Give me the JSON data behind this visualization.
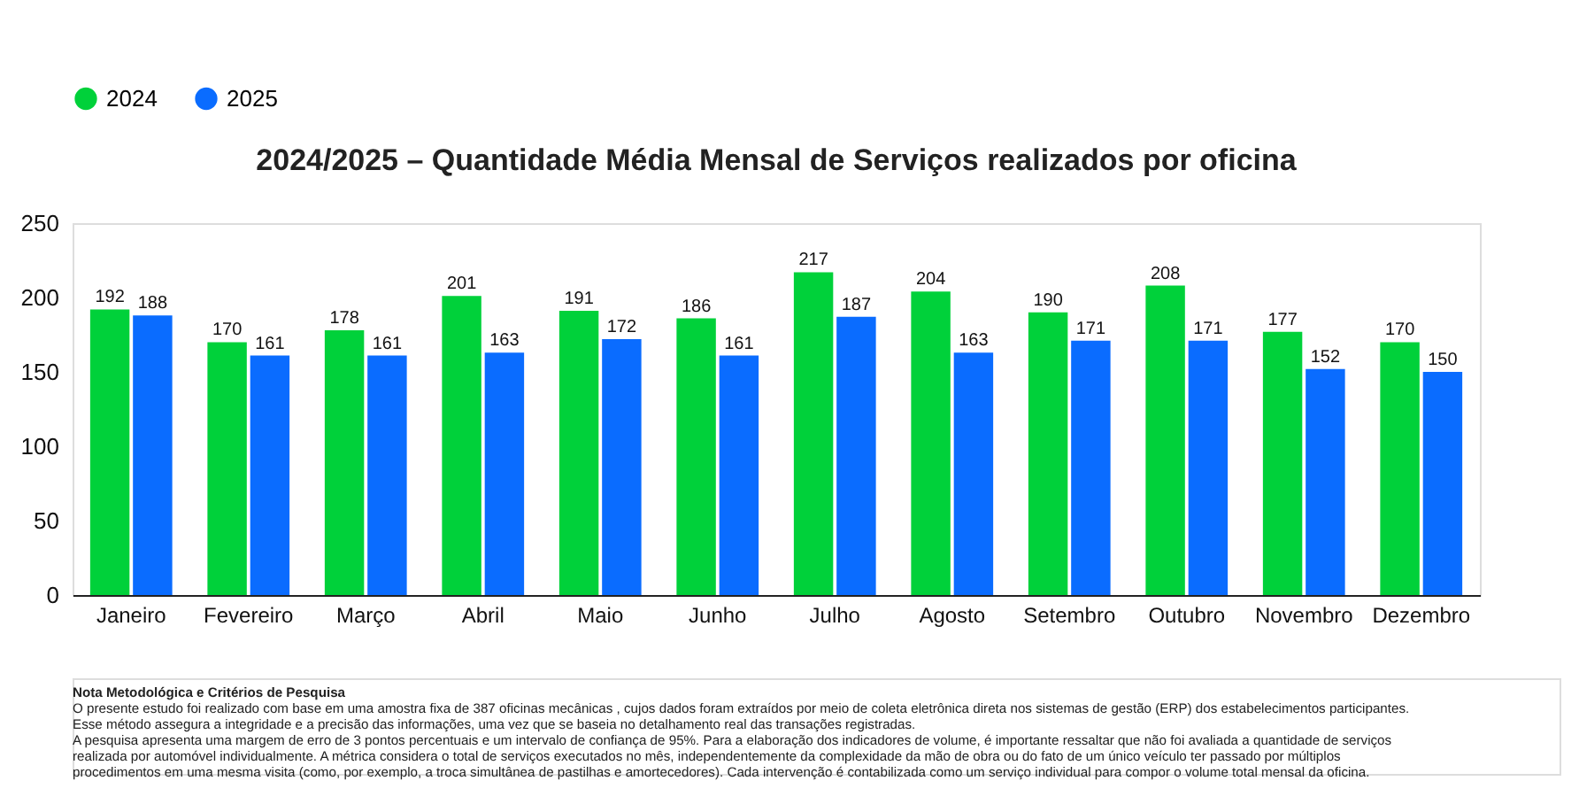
{
  "chart_data": {
    "type": "bar",
    "title": "2024/2025 – Quantidade Média Mensal de Serviços realizados por oficina",
    "categories": [
      "Janeiro",
      "Fevereiro",
      "Março",
      "Abril",
      "Maio",
      "Junho",
      "Julho",
      "Agosto",
      "Setembro",
      "Outubro",
      "Novembro",
      "Dezembro"
    ],
    "series": [
      {
        "name": "2024",
        "color": "#00d13a",
        "values": [
          192,
          170,
          178,
          201,
          191,
          186,
          217,
          204,
          190,
          208,
          177,
          170
        ]
      },
      {
        "name": "2025",
        "color": "#0a6cff",
        "values": [
          188,
          161,
          161,
          163,
          172,
          161,
          187,
          163,
          171,
          171,
          152,
          150
        ]
      }
    ],
    "ylim": [
      0,
      250
    ],
    "yticks": [
      0,
      50,
      100,
      150,
      200,
      250
    ],
    "grid": false,
    "legend": "top",
    "data_labels": true,
    "annotations": [
      "Nota Metodológica e Critérios de Pesquisa",
      "O presente estudo foi realizado com base em uma amostra fixa de 387 oficinas mecânicas , cujos dados foram extraídos por meio de coleta eletrônica direta nos sistemas de gestão (ERP) dos estabelecimentos participantes.",
      "Esse método assegura a integridade e a precisão das informações, uma vez que se baseia no detalhamento real das transações registradas.",
      "A pesquisa apresenta uma margem de erro de 3 pontos percentuais e um intervalo de confiança de 95%. Para a elaboração dos indicadores de volume, é importante ressaltar que não foi avaliada a quantidade de serviços",
      "realizada por automóvel individualmente. A métrica considera o total de serviços executados no mês, independentemente da complexidade da mão de obra ou do fato de um único veículo ter passado por múltiplos",
      "procedimentos em uma mesma visita (como, por exemplo, a troca simultânea de pastilhas e amortecedores). Cada intervenção é contabilizada como um serviço individual para compor o volume total mensal da oficina."
    ]
  }
}
